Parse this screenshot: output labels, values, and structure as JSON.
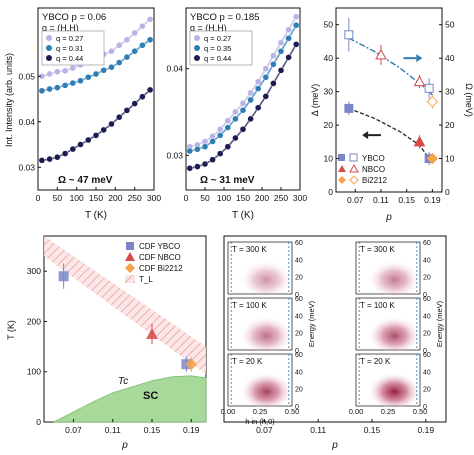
{
  "chart_data": [
    {
      "panel": "a-left",
      "type": "scatter",
      "title": "YBCO p = 0.06",
      "subtitle": "q = (H,H)",
      "xlabel": "T (K)",
      "ylabel": "Int. Intensity (arb. units)",
      "xlim": [
        0,
        300
      ],
      "xticks": [
        "0",
        "50",
        "100",
        "150",
        "200",
        "250",
        "300"
      ],
      "ylim": [
        0.025,
        0.065
      ],
      "yticks": [
        "0.03",
        "0.04",
        "0.05"
      ],
      "legend_placement": "top-left",
      "annotation": "Ω ~ 47 meV",
      "series": [
        {
          "name": "q = 0.27",
          "color": "#b9b2e6",
          "x": [
            10,
            30,
            50,
            70,
            90,
            110,
            130,
            150,
            170,
            190,
            210,
            230,
            250,
            270,
            290
          ],
          "y": [
            0.05,
            0.0505,
            0.051,
            0.0512,
            0.0518,
            0.0525,
            0.053,
            0.054,
            0.0548,
            0.0555,
            0.0568,
            0.058,
            0.0595,
            0.061,
            0.0625
          ]
        },
        {
          "name": "q = 0.31",
          "color": "#2f7db5",
          "x": [
            10,
            30,
            50,
            70,
            90,
            110,
            130,
            150,
            170,
            190,
            210,
            230,
            250,
            270,
            290
          ],
          "y": [
            0.0468,
            0.0472,
            0.0475,
            0.048,
            0.0485,
            0.049,
            0.0498,
            0.0505,
            0.0513,
            0.052,
            0.053,
            0.0542,
            0.0555,
            0.0568,
            0.058
          ]
        },
        {
          "name": "q = 0.44",
          "color": "#1c1c54",
          "x": [
            10,
            30,
            50,
            70,
            90,
            110,
            130,
            150,
            170,
            190,
            210,
            230,
            250,
            270,
            290
          ],
          "y": [
            0.0315,
            0.0318,
            0.0322,
            0.033,
            0.034,
            0.035,
            0.036,
            0.037,
            0.0382,
            0.0395,
            0.041,
            0.0425,
            0.044,
            0.0455,
            0.047
          ]
        }
      ]
    },
    {
      "panel": "a-right",
      "type": "scatter",
      "title": "YBCO p = 0.185",
      "subtitle": "q = (H,H)",
      "xlabel": "T (K)",
      "xlim": [
        0,
        300
      ],
      "xticks": [
        "0",
        "50",
        "100",
        "150",
        "200",
        "250",
        "300"
      ],
      "ylim": [
        0.026,
        0.047
      ],
      "yticks": [
        "0.03",
        "0.04"
      ],
      "legend_placement": "top-right",
      "annotation": "Ω ~ 31 meV",
      "series": [
        {
          "name": "q = 0.27",
          "color": "#b9b2e6",
          "x": [
            10,
            30,
            50,
            70,
            90,
            110,
            130,
            150,
            170,
            190,
            210,
            230,
            250,
            270,
            290
          ],
          "y": [
            0.031,
            0.0312,
            0.0316,
            0.0322,
            0.033,
            0.034,
            0.035,
            0.036,
            0.0372,
            0.0385,
            0.04,
            0.0415,
            0.043,
            0.0445,
            0.046
          ]
        },
        {
          "name": "q = 0.35",
          "color": "#2f7db5",
          "x": [
            10,
            30,
            50,
            70,
            90,
            110,
            130,
            150,
            170,
            190,
            210,
            230,
            250,
            270,
            290
          ],
          "y": [
            0.0305,
            0.0307,
            0.031,
            0.0316,
            0.0323,
            0.0332,
            0.0342,
            0.0352,
            0.0364,
            0.0377,
            0.039,
            0.0405,
            0.042,
            0.0435,
            0.045
          ]
        },
        {
          "name": "q = 0.44",
          "color": "#1c1c54",
          "x": [
            10,
            30,
            50,
            70,
            90,
            110,
            130,
            150,
            170,
            190,
            210,
            230,
            250,
            270,
            290
          ],
          "y": [
            0.0285,
            0.0287,
            0.029,
            0.0295,
            0.0302,
            0.031,
            0.032,
            0.033,
            0.0342,
            0.0355,
            0.0368,
            0.0383,
            0.0398,
            0.0413,
            0.0428
          ]
        }
      ]
    },
    {
      "panel": "b",
      "type": "scatter",
      "xlabel": "p",
      "ylabel_left": "Δ (meV)",
      "ylabel_right": "Ω (meV)",
      "xlim": [
        0.04,
        0.205
      ],
      "xticks": [
        "0.07",
        "0.11",
        "0.15",
        "0.19"
      ],
      "ylim": [
        0,
        55
      ],
      "yticks": [
        "0",
        "10",
        "20",
        "30",
        "40",
        "50"
      ],
      "legend_placement": "bottom-left",
      "legend": {
        "labels": [
          "YBCO",
          "NBCO",
          "Bi2212"
        ]
      },
      "delta": [
        {
          "name": "YBCO",
          "color": "#7b86c8",
          "p": [
            0.06,
            0.185
          ],
          "v": [
            25,
            10
          ],
          "err": [
            2,
            2
          ]
        },
        {
          "name": "NBCO",
          "color": "#d64a4a",
          "p": [
            0.17
          ],
          "v": [
            15
          ],
          "err": [
            2
          ]
        },
        {
          "name": "Bi2212",
          "color": "#f5a24a",
          "p": [
            0.19
          ],
          "v": [
            10
          ],
          "err": [
            1
          ]
        }
      ],
      "omega": [
        {
          "name": "YBCO",
          "color": "#7b86c8",
          "p": [
            0.06,
            0.185
          ],
          "v": [
            47,
            31
          ],
          "err": [
            5,
            3
          ]
        },
        {
          "name": "NBCO",
          "color": "#d64a4a",
          "p": [
            0.11,
            0.17
          ],
          "v": [
            41,
            33
          ],
          "err": [
            3,
            2
          ]
        },
        {
          "name": "Bi2212",
          "color": "#f5a24a",
          "p": [
            0.19
          ],
          "v": [
            27
          ],
          "err": [
            2
          ]
        }
      ],
      "omega_fit": {
        "color": "#2f7db5",
        "p": [
          0.06,
          0.1,
          0.14,
          0.18,
          0.19
        ],
        "v": [
          46,
          42,
          37,
          31,
          29
        ]
      },
      "delta_fit": {
        "color": "#333333",
        "p": [
          0.06,
          0.1,
          0.14,
          0.17,
          0.185
        ],
        "v": [
          25,
          22,
          18,
          14,
          10
        ]
      }
    },
    {
      "panel": "c",
      "type": "scatter",
      "xlabel": "p",
      "ylabel": "T (K)",
      "xlim": [
        0.04,
        0.205
      ],
      "xticks": [
        "0.07",
        "0.11",
        "0.15",
        "0.19"
      ],
      "ylim": [
        0,
        370
      ],
      "yticks": [
        "0",
        "100",
        "200",
        "300"
      ],
      "legend_placement": "top-right",
      "legend": {
        "labels": [
          "CDF YBCO",
          "CDF NBCO",
          "CDF Bi2212",
          "T_L"
        ]
      },
      "cdf": [
        {
          "name": "CDF YBCO",
          "color": "#7b86c8",
          "p": [
            0.06,
            0.185
          ],
          "T": [
            290,
            115
          ],
          "err": [
            25,
            15
          ]
        },
        {
          "name": "CDF NBCO",
          "color": "#d64a4a",
          "p": [
            0.15
          ],
          "T": [
            175
          ],
          "err": [
            20
          ]
        },
        {
          "name": "CDF Bi2212",
          "color": "#f5a24a",
          "p": [
            0.19
          ],
          "T": [
            115
          ],
          "err": [
            15
          ]
        }
      ],
      "band_TL": {
        "p": [
          0.04,
          0.205
        ],
        "upper": [
          380,
          150
        ],
        "lower": [
          330,
          95
        ]
      },
      "dome_Tc": {
        "p": [
          0.05,
          0.07,
          0.09,
          0.11,
          0.13,
          0.15,
          0.17,
          0.19,
          0.205
        ],
        "T": [
          0,
          20,
          40,
          58,
          70,
          82,
          90,
          92,
          88
        ]
      },
      "labels": {
        "tc": "Tc",
        "sc": "SC"
      }
    },
    {
      "panel": "d",
      "type": "heatmap",
      "xlabel": "p",
      "xticks": [
        "0.07",
        "0.11",
        "0.15",
        "0.19"
      ],
      "inner_xlabel": "h in (h,0)",
      "inner_xticks": [
        "0.00",
        "0.25",
        "0.50"
      ],
      "inner_ylabel": "Energy (meV)",
      "inner_yticks": [
        "0",
        "20",
        "40",
        "60"
      ],
      "temperatures": [
        "T = 300 K",
        "T = 100 K",
        "T = 20 K"
      ],
      "columns": [
        {
          "center": 0.3,
          "width": 0.22
        },
        {
          "center": 0.3,
          "width": 0.22
        }
      ],
      "intensity": {
        "row0": [
          0.45,
          0.55
        ],
        "row1": [
          0.6,
          0.75
        ],
        "row2": [
          0.8,
          0.95
        ]
      }
    }
  ]
}
